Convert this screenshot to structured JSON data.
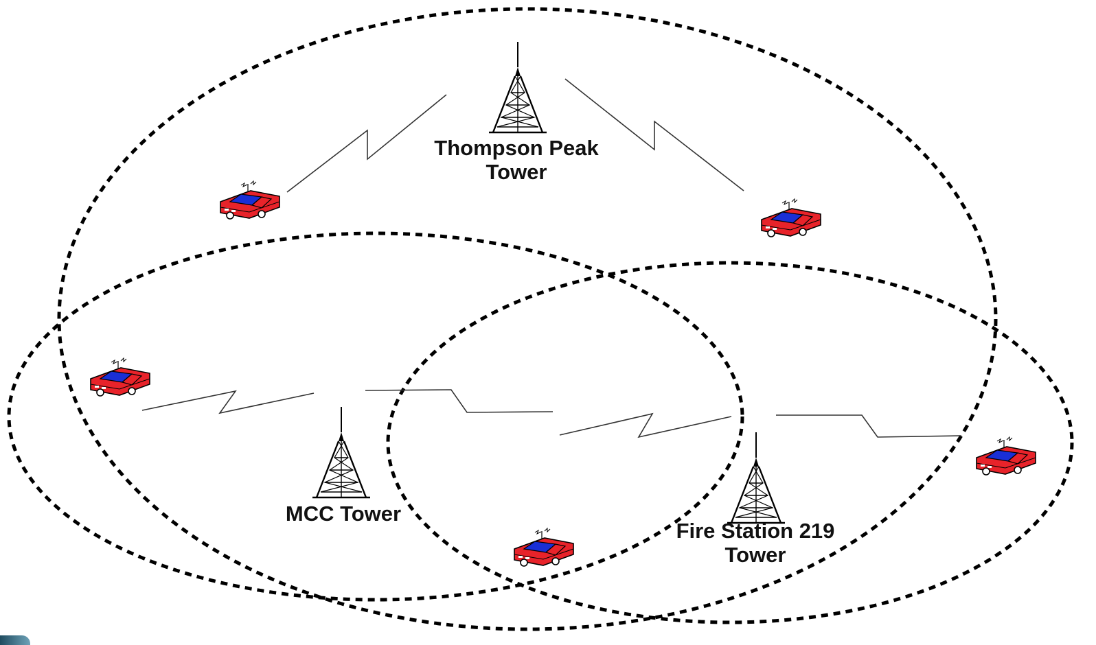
{
  "towers": [
    {
      "id": "thompson",
      "line1": "Thompson Peak",
      "line2": "Tower"
    },
    {
      "id": "mcc",
      "line1": "MCC Tower",
      "line2": ""
    },
    {
      "id": "fire219",
      "line1": "Fire Station 219",
      "line2": "Tower"
    }
  ],
  "colors": {
    "car_body": "#e8232a",
    "car_window": "#1a2fd6",
    "ink": "#000000"
  },
  "icons": {
    "tower": "radio-tower-icon",
    "vehicle": "police-car-icon"
  }
}
